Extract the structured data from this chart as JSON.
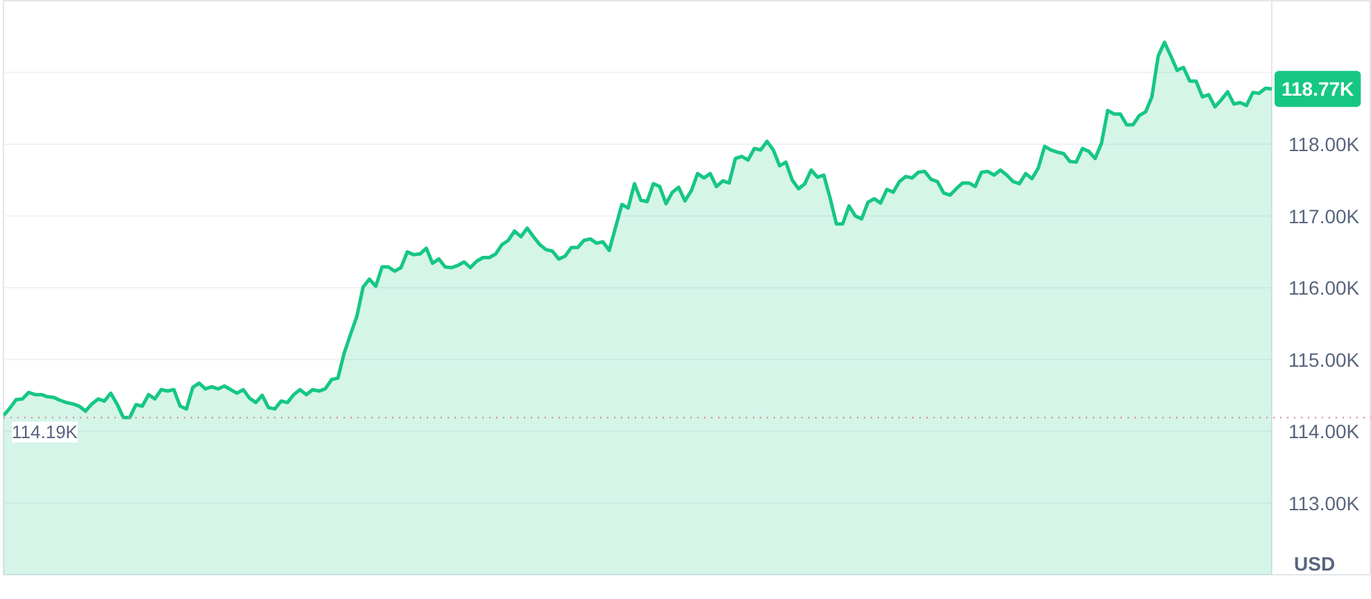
{
  "chart_data": {
    "type": "area",
    "ylabel": "USD",
    "categories": [
      null,
      null,
      null,
      null,
      null,
      null,
      null,
      null,
      null,
      null,
      null,
      null,
      null,
      null,
      null,
      null,
      null,
      null,
      null,
      null,
      null,
      null,
      null,
      null,
      null,
      null,
      null,
      null,
      null,
      null,
      null,
      null,
      null,
      null,
      null,
      null,
      null,
      null,
      null,
      null,
      null,
      null,
      null,
      null,
      null,
      null,
      null,
      null,
      null,
      null,
      null,
      null,
      null,
      null,
      null,
      null,
      null,
      null,
      null,
      null,
      null,
      null,
      null,
      null,
      null,
      null,
      null,
      null,
      null,
      null,
      null,
      null,
      null,
      null,
      null,
      null,
      null,
      null,
      null,
      null,
      null,
      null,
      null,
      null,
      null,
      null,
      null,
      null,
      null,
      null,
      null,
      null,
      null,
      null,
      null,
      null,
      null,
      null,
      null,
      null,
      null,
      null,
      null,
      null,
      null,
      null,
      null,
      null,
      null,
      null,
      null,
      null,
      null,
      null,
      null,
      null,
      null,
      null,
      null,
      null,
      null,
      null,
      null,
      null,
      null,
      null,
      null,
      null,
      null,
      null,
      null,
      null,
      null,
      null,
      null,
      null,
      null,
      null,
      null,
      null,
      null,
      null,
      null,
      null,
      null,
      null,
      null,
      null,
      null,
      null,
      null,
      null,
      null,
      null,
      null,
      null,
      null,
      null,
      null,
      null,
      null,
      null,
      null,
      null,
      null,
      null,
      null,
      null,
      null,
      null,
      null,
      null,
      null,
      null,
      null,
      null,
      null,
      null,
      null,
      null,
      null,
      null,
      null,
      null,
      null,
      null,
      null,
      null,
      null,
      null,
      null,
      null,
      null,
      null,
      null,
      null,
      null,
      null,
      null,
      null,
      null,
      null
    ],
    "values": [
      114.22,
      114.32,
      114.44,
      114.45,
      114.54,
      114.51,
      114.51,
      114.48,
      114.47,
      114.43,
      114.4,
      114.38,
      114.35,
      114.28,
      114.38,
      114.45,
      114.42,
      114.53,
      114.38,
      114.19,
      114.19,
      114.37,
      114.35,
      114.51,
      114.45,
      114.58,
      114.56,
      114.58,
      114.35,
      114.31,
      114.61,
      114.67,
      114.59,
      114.62,
      114.59,
      114.63,
      114.58,
      114.53,
      114.58,
      114.46,
      114.4,
      114.5,
      114.33,
      114.31,
      114.42,
      114.4,
      114.51,
      114.58,
      114.51,
      114.58,
      114.56,
      114.59,
      114.72,
      114.74,
      115.09,
      115.35,
      115.6,
      116.01,
      116.12,
      116.02,
      116.29,
      116.29,
      116.23,
      116.28,
      116.5,
      116.46,
      116.47,
      116.55,
      116.34,
      116.4,
      116.29,
      116.28,
      116.31,
      116.36,
      116.28,
      116.37,
      116.42,
      116.42,
      116.47,
      116.6,
      116.66,
      116.79,
      116.71,
      116.83,
      116.71,
      116.6,
      116.53,
      116.51,
      116.4,
      116.44,
      116.56,
      116.56,
      116.66,
      116.68,
      116.62,
      116.64,
      116.52,
      116.84,
      117.16,
      117.11,
      117.45,
      117.22,
      117.2,
      117.45,
      117.41,
      117.17,
      117.33,
      117.4,
      117.21,
      117.35,
      117.59,
      117.53,
      117.59,
      117.41,
      117.49,
      117.46,
      117.8,
      117.83,
      117.78,
      117.94,
      117.92,
      118.04,
      117.92,
      117.7,
      117.75,
      117.5,
      117.38,
      117.45,
      117.64,
      117.54,
      117.57,
      117.25,
      116.89,
      116.89,
      117.14,
      117.0,
      116.96,
      117.19,
      117.24,
      117.18,
      117.37,
      117.33,
      117.48,
      117.55,
      117.53,
      117.61,
      117.62,
      117.51,
      117.48,
      117.32,
      117.29,
      117.38,
      117.46,
      117.46,
      117.41,
      117.61,
      117.62,
      117.57,
      117.64,
      117.57,
      117.48,
      117.45,
      117.59,
      117.52,
      117.67,
      117.97,
      117.92,
      117.89,
      117.87,
      117.76,
      117.75,
      117.94,
      117.9,
      117.8,
      118.01,
      118.47,
      118.42,
      118.42,
      118.27,
      118.27,
      118.4,
      118.45,
      118.66,
      119.23,
      119.42,
      119.23,
      119.03,
      119.07,
      118.88,
      118.88,
      118.66,
      118.69,
      118.52,
      118.62,
      118.73,
      118.56,
      118.58,
      118.54,
      118.72,
      118.71,
      118.78,
      118.77
    ],
    "color": "#16c784",
    "ylim": [
      112,
      120
    ],
    "yticks": [
      {
        "value": 113,
        "label": "113.00K"
      },
      {
        "value": 114,
        "label": "114.00K"
      },
      {
        "value": 115,
        "label": "115.00K"
      },
      {
        "value": 116,
        "label": "116.00K"
      },
      {
        "value": 117,
        "label": "117.00K"
      },
      {
        "value": 118,
        "label": "118.00K"
      },
      {
        "value": 119,
        "label": null
      }
    ],
    "grid": "y",
    "tick_labels": "y",
    "ref_lines": [
      {
        "axis": "y",
        "value": 114.19,
        "label": "114.19K",
        "color": "#d88a8a",
        "line_style": "dotted"
      }
    ],
    "annotations": [
      "118.77K"
    ]
  }
}
